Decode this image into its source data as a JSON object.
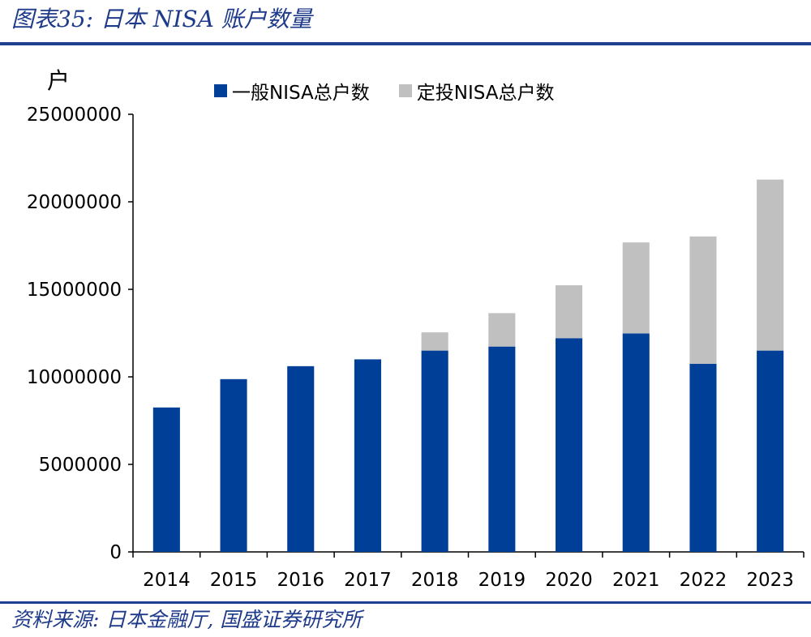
{
  "figure": {
    "title": "图表35:  日本 NISA 账户数量",
    "source": "资料来源:  日本金融厅,  国盛证券研究所"
  },
  "colors": {
    "rule": "#1f3f8f",
    "general": "#003f98",
    "tsumitate": "#c0c0c0"
  },
  "chart_data": {
    "type": "bar",
    "stacked": true,
    "unit_label": "户",
    "categories": [
      "2014",
      "2015",
      "2016",
      "2017",
      "2018",
      "2019",
      "2020",
      "2021",
      "2022",
      "2023"
    ],
    "series": [
      {
        "name": "一般NISA总户数",
        "color": "#003f98",
        "values": [
          8250000,
          9870000,
          10610000,
          11000000,
          11500000,
          11730000,
          12210000,
          12480000,
          10750000,
          11500000
        ]
      },
      {
        "name": "定投NISA总户数",
        "color": "#c0c0c0",
        "values": [
          0,
          0,
          0,
          0,
          1040000,
          1910000,
          3020000,
          5200000,
          7270000,
          9770000
        ]
      }
    ],
    "ylim": [
      0,
      25000000
    ],
    "yticks": [
      "0",
      "5000000",
      "10000000",
      "15000000",
      "20000000",
      "25000000"
    ],
    "legend_position": "top-center",
    "grid": false
  }
}
